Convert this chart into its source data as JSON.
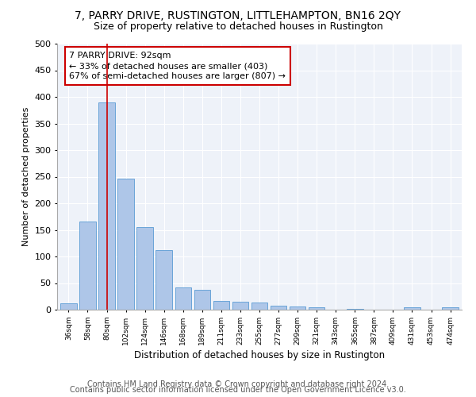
{
  "title": "7, PARRY DRIVE, RUSTINGTON, LITTLEHAMPTON, BN16 2QY",
  "subtitle": "Size of property relative to detached houses in Rustington",
  "xlabel": "Distribution of detached houses by size in Rustington",
  "ylabel": "Number of detached properties",
  "categories": [
    "36sqm",
    "58sqm",
    "80sqm",
    "102sqm",
    "124sqm",
    "146sqm",
    "168sqm",
    "189sqm",
    "211sqm",
    "233sqm",
    "255sqm",
    "277sqm",
    "299sqm",
    "321sqm",
    "343sqm",
    "365sqm",
    "387sqm",
    "409sqm",
    "431sqm",
    "453sqm",
    "474sqm"
  ],
  "values": [
    12,
    165,
    390,
    247,
    155,
    112,
    42,
    38,
    17,
    15,
    13,
    8,
    6,
    4,
    0,
    2,
    0,
    0,
    4,
    0,
    4
  ],
  "bar_color": "#aec6e8",
  "bar_edge_color": "#5a9bd4",
  "vline_x": 2,
  "vline_color": "#cc0000",
  "annotation_line1": "7 PARRY DRIVE: 92sqm",
  "annotation_line2": "← 33% of detached houses are smaller (403)",
  "annotation_line3": "67% of semi-detached houses are larger (807) →",
  "ylim": [
    0,
    500
  ],
  "yticks": [
    0,
    50,
    100,
    150,
    200,
    250,
    300,
    350,
    400,
    450,
    500
  ],
  "footer_line1": "Contains HM Land Registry data © Crown copyright and database right 2024.",
  "footer_line2": "Contains public sector information licensed under the Open Government Licence v3.0.",
  "bg_color": "#eef2f9",
  "title_fontsize": 10,
  "subtitle_fontsize": 9,
  "xlabel_fontsize": 8.5,
  "ylabel_fontsize": 8,
  "footer_fontsize": 7,
  "annotation_fontsize": 8
}
